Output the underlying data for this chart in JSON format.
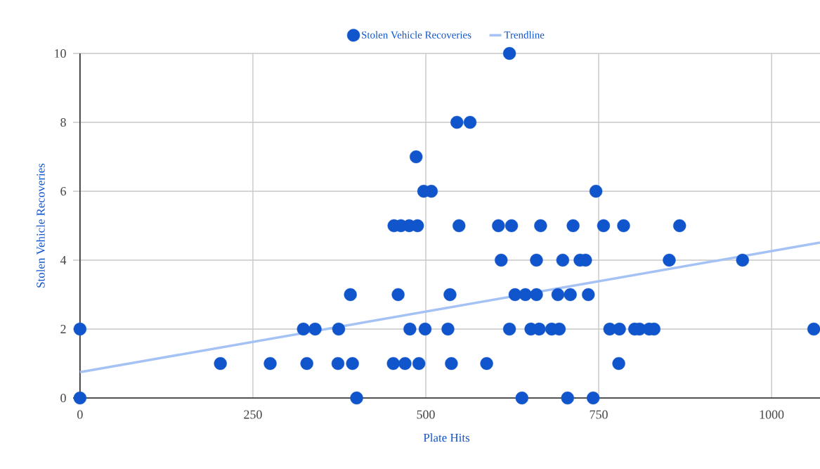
{
  "chart_data": {
    "type": "scatter",
    "xlabel": "Plate Hits",
    "ylabel": "Stolen Vehicle Recoveries",
    "xlim": [
      -10,
      1070
    ],
    "ylim": [
      0,
      10
    ],
    "xticks": [
      0,
      250,
      500,
      750,
      1000
    ],
    "yticks": [
      0,
      2,
      4,
      6,
      8,
      10
    ],
    "grid": true,
    "legend": "top",
    "marker": "circle",
    "series": [
      {
        "name": "Stolen Vehicle Recoveries",
        "color": "#1155cc",
        "x": [
          0,
          400,
          639,
          705,
          742,
          203,
          275,
          328,
          373,
          394,
          453,
          470,
          490,
          537,
          588,
          779,
          0,
          323,
          340,
          374,
          477,
          499,
          532,
          621,
          652,
          664,
          682,
          693,
          766,
          780,
          802,
          809,
          823,
          830,
          1061,
          391,
          460,
          535,
          629,
          644,
          660,
          691,
          709,
          735,
          609,
          660,
          698,
          723,
          731,
          852,
          958,
          454,
          464,
          476,
          488,
          548,
          605,
          624,
          666,
          713,
          757,
          786,
          867,
          497,
          508,
          746,
          486,
          545,
          564,
          621
        ],
        "values": [
          0,
          0,
          0,
          0,
          0,
          1,
          1,
          1,
          1,
          1,
          1,
          1,
          1,
          1,
          1,
          1,
          2,
          2,
          2,
          2,
          2,
          2,
          2,
          2,
          2,
          2,
          2,
          2,
          2,
          2,
          2,
          2,
          2,
          2,
          2,
          3,
          3,
          3,
          3,
          3,
          3,
          3,
          3,
          3,
          4,
          4,
          4,
          4,
          4,
          4,
          4,
          5,
          5,
          5,
          5,
          5,
          5,
          5,
          5,
          5,
          5,
          5,
          5,
          6,
          6,
          6,
          7,
          8,
          8,
          10
        ]
      },
      {
        "name": "Trendline",
        "type": "line",
        "marker": "none",
        "color": "#a4c2f4",
        "x": [
          0,
          1070
        ],
        "values": [
          0.75,
          4.51
        ]
      }
    ]
  }
}
